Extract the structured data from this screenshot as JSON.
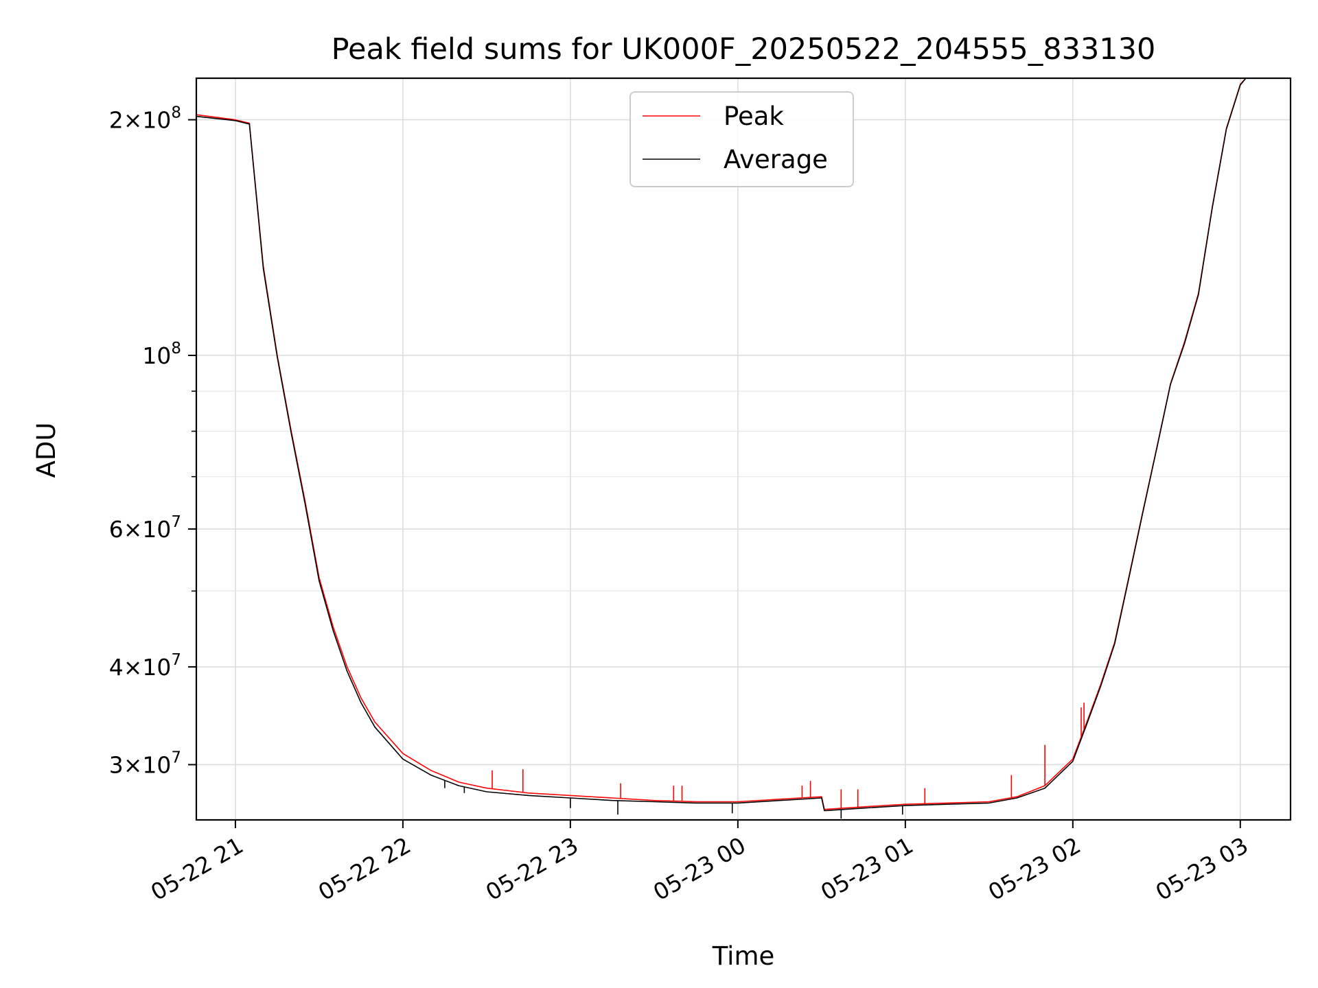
{
  "chart_data": {
    "type": "line",
    "title": "Peak field sums for UK000F_20250522_204555_833130",
    "xlabel": "Time",
    "ylabel": "ADU",
    "yscale": "log",
    "grid": true,
    "legend_position": "upper center",
    "xlim": [
      "05-22 20:46",
      "05-23 03:18"
    ],
    "ylim": [
      25500000,
      226000000
    ],
    "x_ticks": [
      {
        "value": "2025-05-22 21:00",
        "label": "05-22 21"
      },
      {
        "value": "2025-05-22 22:00",
        "label": "05-22 22"
      },
      {
        "value": "2025-05-22 23:00",
        "label": "05-22 23"
      },
      {
        "value": "2025-05-23 00:00",
        "label": "05-23 00"
      },
      {
        "value": "2025-05-23 01:00",
        "label": "05-23 01"
      },
      {
        "value": "2025-05-23 02:00",
        "label": "05-23 02"
      },
      {
        "value": "2025-05-23 03:00",
        "label": "05-23 03"
      }
    ],
    "y_ticks_major": [
      {
        "value": 200000000,
        "mantissa": "2",
        "exponent": "8"
      },
      {
        "value": 100000000,
        "mantissa": "",
        "exponent": "8"
      },
      {
        "value": 60000000,
        "mantissa": "6",
        "exponent": "7"
      },
      {
        "value": 40000000,
        "mantissa": "4",
        "exponent": "7"
      },
      {
        "value": 30000000,
        "mantissa": "3",
        "exponent": "7"
      }
    ],
    "y_ticks_minor": [
      90000000,
      80000000,
      70000000,
      50000000
    ],
    "series": [
      {
        "name": "Peak",
        "color": "#ff0000",
        "x": [
          "05-22 20:46",
          "05-22 21:00",
          "05-22 21:05",
          "05-22 21:10",
          "05-22 21:15",
          "05-22 21:20",
          "05-22 21:25",
          "05-22 21:30",
          "05-22 21:35",
          "05-22 21:40",
          "05-22 21:45",
          "05-22 21:50",
          "05-22 22:00",
          "05-22 22:10",
          "05-22 22:20",
          "05-22 22:30",
          "05-22 22:45",
          "05-22 23:00",
          "05-22 23:15",
          "05-22 23:30",
          "05-22 23:45",
          "05-23 00:00",
          "05-23 00:15",
          "05-23 00:30",
          "05-23 00:31",
          "05-23 00:45",
          "05-23 01:00",
          "05-23 01:15",
          "05-23 01:30",
          "05-23 01:40",
          "05-23 01:50",
          "05-23 02:00",
          "05-23 02:05",
          "05-23 02:10",
          "05-23 02:15",
          "05-23 02:20",
          "05-23 02:25",
          "05-23 02:30",
          "05-23 02:35",
          "05-23 02:40",
          "05-23 02:45",
          "05-23 02:50",
          "05-23 02:55",
          "05-23 03:00",
          "05-23 03:02",
          "05-23 03:18"
        ],
        "y": [
          203000000,
          200000000,
          198000000,
          130000000,
          100000000,
          80000000,
          65000000,
          52000000,
          45000000,
          40000000,
          36500000,
          34000000,
          31000000,
          29500000,
          28500000,
          28000000,
          27600000,
          27400000,
          27200000,
          27000000,
          26900000,
          26900000,
          27100000,
          27300000,
          26300000,
          26500000,
          26700000,
          26800000,
          26900000,
          27300000,
          28200000,
          30500000,
          34000000,
          38000000,
          43000000,
          52000000,
          63000000,
          76000000,
          92000000,
          104000000,
          120000000,
          155000000,
          195000000,
          222000000,
          226000000,
          226000000
        ],
        "spikes": [
          {
            "x": "05-22 22:32",
            "y": 29500000
          },
          {
            "x": "05-22 22:43",
            "y": 29600000
          },
          {
            "x": "05-22 23:18",
            "y": 28400000
          },
          {
            "x": "05-22 23:37",
            "y": 28200000
          },
          {
            "x": "05-22 23:40",
            "y": 28200000
          },
          {
            "x": "05-23 00:23",
            "y": 28200000
          },
          {
            "x": "05-23 00:26",
            "y": 28600000
          },
          {
            "x": "05-23 00:37",
            "y": 27900000
          },
          {
            "x": "05-23 00:43",
            "y": 27900000
          },
          {
            "x": "05-23 01:07",
            "y": 28000000
          },
          {
            "x": "05-23 01:38",
            "y": 29100000
          },
          {
            "x": "05-23 01:50",
            "y": 31800000
          },
          {
            "x": "05-23 02:03",
            "y": 35500000
          },
          {
            "x": "05-23 02:04",
            "y": 36000000
          }
        ]
      },
      {
        "name": "Average",
        "color": "#000000",
        "x": [
          "05-22 20:46",
          "05-22 21:00",
          "05-22 21:05",
          "05-22 21:10",
          "05-22 21:15",
          "05-22 21:20",
          "05-22 21:25",
          "05-22 21:30",
          "05-22 21:35",
          "05-22 21:40",
          "05-22 21:45",
          "05-22 21:50",
          "05-22 22:00",
          "05-22 22:10",
          "05-22 22:20",
          "05-22 22:30",
          "05-22 22:45",
          "05-22 23:00",
          "05-22 23:15",
          "05-22 23:30",
          "05-22 23:45",
          "05-23 00:00",
          "05-23 00:15",
          "05-23 00:30",
          "05-23 00:31",
          "05-23 00:45",
          "05-23 01:00",
          "05-23 01:15",
          "05-23 01:30",
          "05-23 01:40",
          "05-23 01:50",
          "05-23 02:00",
          "05-23 02:05",
          "05-23 02:10",
          "05-23 02:15",
          "05-23 02:20",
          "05-23 02:25",
          "05-23 02:30",
          "05-23 02:35",
          "05-23 02:40",
          "05-23 02:45",
          "05-23 02:50",
          "05-23 02:55",
          "05-23 03:00",
          "05-23 03:02",
          "05-23 03:18"
        ],
        "y": [
          202000000,
          199500000,
          197500000,
          129000000,
          99500000,
          79500000,
          64500000,
          51500000,
          44500000,
          39500000,
          36000000,
          33500000,
          30500000,
          29100000,
          28200000,
          27700000,
          27400000,
          27200000,
          27000000,
          26900000,
          26800000,
          26800000,
          27000000,
          27200000,
          26200000,
          26400000,
          26600000,
          26700000,
          26800000,
          27200000,
          28000000,
          30300000,
          33800000,
          37800000,
          42800000,
          51800000,
          62800000,
          75800000,
          91800000,
          103500000,
          119500000,
          154500000,
          194500000,
          221500000,
          226000000,
          226000000
        ],
        "dips": [
          {
            "x": "05-22 22:15",
            "y": 28000000
          },
          {
            "x": "05-22 22:22",
            "y": 27600000
          },
          {
            "x": "05-22 23:00",
            "y": 26400000
          },
          {
            "x": "05-22 23:17",
            "y": 25900000
          },
          {
            "x": "05-22 23:58",
            "y": 26000000
          },
          {
            "x": "05-23 00:37",
            "y": 25600000
          },
          {
            "x": "05-23 00:59",
            "y": 25900000
          }
        ]
      }
    ]
  }
}
